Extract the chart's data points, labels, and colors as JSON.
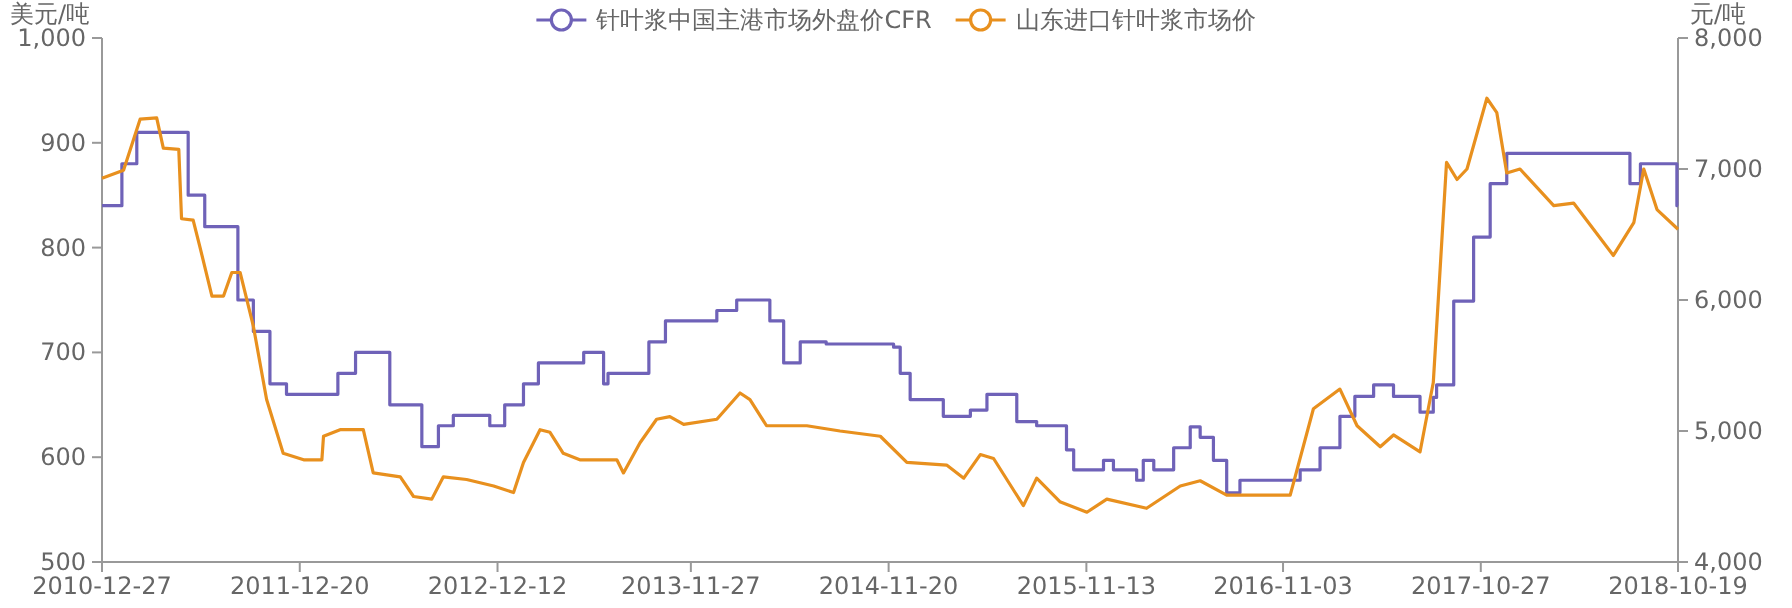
{
  "chart_data": {
    "type": "line",
    "ylabel": "美元/吨",
    "y2label": "元/吨",
    "legend": "top",
    "xlim": [
      "2010-12-27",
      "2018-10-19"
    ],
    "xticks": [
      "2010-12-27",
      "2011-12-20",
      "2012-12-12",
      "2013-11-27",
      "2014-11-20",
      "2015-11-13",
      "2016-11-03",
      "2017-10-27",
      "2018-10-19"
    ],
    "ylim": [
      500,
      1000
    ],
    "yticks": [
      500,
      600,
      700,
      800,
      900,
      {
        "value": 1000,
        "label": "1,000"
      }
    ],
    "y2lim": [
      4000,
      8000
    ],
    "y2ticks": [
      {
        "value": 4000,
        "label": "4,000"
      },
      {
        "value": 5000,
        "label": "5,000"
      },
      {
        "value": 6000,
        "label": "6,000"
      },
      {
        "value": 7000,
        "label": "7,000"
      },
      {
        "value": 8000,
        "label": "8,000"
      }
    ],
    "series": [
      {
        "name": "针叶浆中国主港市场外盘价CFR",
        "type": "step",
        "color": "#6f62b8",
        "x": [
          "2010-12-27",
          "2011-02-01",
          "2011-02-28",
          "2011-06-01",
          "2011-07-01",
          "2011-08-30",
          "2011-09-27",
          "2011-10-27",
          "2011-11-26",
          "2012-02-27",
          "2012-03-30",
          "2012-05-31",
          "2012-07-28",
          "2012-08-27",
          "2012-09-23",
          "2012-11-28",
          "2012-12-25",
          "2013-01-28",
          "2013-02-24",
          "2013-05-17",
          "2013-06-22",
          "2013-06-30",
          "2013-09-12",
          "2013-10-12",
          "2014-01-13",
          "2014-02-18",
          "2014-04-19",
          "2014-05-14",
          "2014-06-13",
          "2014-07-30",
          "2014-11-29",
          "2014-12-11",
          "2014-12-29",
          "2015-02-27",
          "2015-04-17",
          "2015-05-17",
          "2015-07-10",
          "2015-08-15",
          "2015-10-08",
          "2015-10-21",
          "2015-12-14",
          "2016-01-01",
          "2016-02-12",
          "2016-02-24",
          "2016-03-14",
          "2016-04-19",
          "2016-05-19",
          "2016-06-06",
          "2016-06-30",
          "2016-07-24",
          "2016-08-17",
          "2016-12-04",
          "2017-01-09",
          "2017-02-14",
          "2017-03-13",
          "2017-04-16",
          "2017-05-22",
          "2017-07-09",
          "2017-08-02",
          "2017-08-08",
          "2017-09-08",
          "2017-10-14",
          "2017-11-13",
          "2017-12-13",
          "2018-07-24",
          "2018-08-12",
          "2018-10-17",
          "2018-10-19"
        ],
        "values": [
          840,
          880,
          910,
          850,
          820,
          750,
          720,
          670,
          660,
          680,
          700,
          650,
          610,
          630,
          640,
          630,
          650,
          670,
          690,
          700,
          670,
          680,
          710,
          730,
          740,
          750,
          730,
          690,
          710,
          708,
          705,
          680,
          655,
          639,
          645,
          660,
          634,
          630,
          607,
          588,
          597,
          588,
          578,
          597,
          588,
          609,
          629,
          619,
          597,
          566,
          578,
          588,
          609,
          639,
          658,
          669,
          658,
          643,
          657,
          669,
          749,
          810,
          861,
          890,
          861,
          880,
          840,
          840
        ]
      },
      {
        "name": "山东进口针叶浆市场价",
        "type": "line",
        "axis": "y2",
        "color": "#e8901e",
        "x": [
          "2010-12-27",
          "2011-02-04",
          "2011-03-06",
          "2011-04-05",
          "2011-04-17",
          "2011-05-15",
          "2011-05-20",
          "2011-06-10",
          "2011-06-22",
          "2011-07-14",
          "2011-08-04",
          "2011-08-19",
          "2011-09-03",
          "2011-09-27",
          "2011-10-21",
          "2011-11-20",
          "2011-12-27",
          "2012-01-29",
          "2012-02-01",
          "2012-03-02",
          "2012-04-13",
          "2012-05-01",
          "2012-06-19",
          "2012-07-13",
          "2012-08-15",
          "2012-09-05",
          "2012-10-17",
          "2012-12-05",
          "2013-01-10",
          "2013-01-28",
          "2013-02-27",
          "2013-03-17",
          "2013-04-10",
          "2013-05-10",
          "2013-07-16",
          "2013-07-28",
          "2013-08-27",
          "2013-09-26",
          "2013-10-20",
          "2013-11-14",
          "2014-01-13",
          "2014-02-24",
          "2014-03-14",
          "2014-04-13",
          "2014-06-25",
          "2014-08-24",
          "2014-11-05",
          "2014-12-23",
          "2015-03-05",
          "2015-04-05",
          "2015-05-05",
          "2015-05-29",
          "2015-07-22",
          "2015-08-15",
          "2015-09-26",
          "2015-11-14",
          "2015-12-20",
          "2016-03-01",
          "2016-05-01",
          "2016-06-06",
          "2016-07-24",
          "2016-11-16",
          "2016-12-28",
          "2017-02-14",
          "2017-03-17",
          "2017-04-28",
          "2017-05-22",
          "2017-07-09",
          "2017-08-02",
          "2017-08-26",
          "2017-09-14",
          "2017-10-02",
          "2017-11-07",
          "2017-11-25",
          "2017-12-13",
          "2018-01-06",
          "2018-03-08",
          "2018-04-13",
          "2018-06-24",
          "2018-07-31",
          "2018-08-18",
          "2018-09-11",
          "2018-10-19"
        ],
        "values": [
          6930,
          6990,
          7380,
          7390,
          7160,
          7150,
          6620,
          6610,
          6410,
          6030,
          6030,
          6210,
          6210,
          5800,
          5240,
          4830,
          4780,
          4780,
          4960,
          5010,
          5010,
          4680,
          4650,
          4500,
          4480,
          4650,
          4630,
          4580,
          4530,
          4760,
          5010,
          4990,
          4830,
          4780,
          4780,
          4680,
          4910,
          5090,
          5110,
          5050,
          5090,
          5290,
          5240,
          5040,
          5040,
          5000,
          4960,
          4760,
          4740,
          4640,
          4820,
          4790,
          4430,
          4640,
          4460,
          4380,
          4480,
          4410,
          4580,
          4620,
          4510,
          4510,
          5170,
          5320,
          5040,
          4880,
          4970,
          4840,
          5370,
          7050,
          6920,
          7000,
          7540,
          7430,
          6970,
          7000,
          6720,
          6740,
          6340,
          6590,
          7000,
          6690,
          6540
        ]
      }
    ]
  }
}
